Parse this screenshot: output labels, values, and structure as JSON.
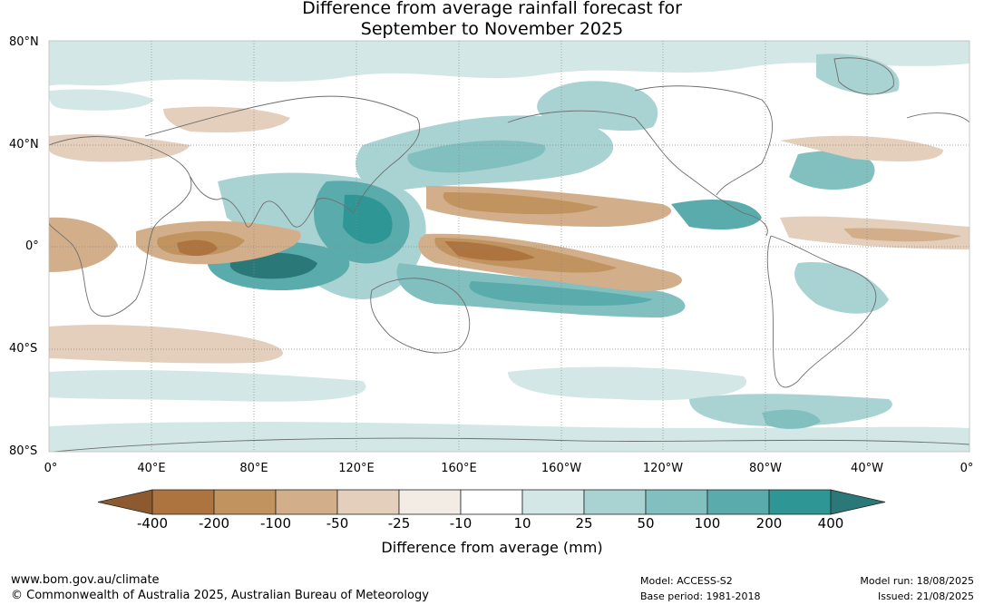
{
  "title": {
    "line1": "Difference from average rainfall forecast for",
    "line2": "September to November 2025"
  },
  "map": {
    "lat_labels": [
      "80°N",
      "40°N",
      "0°",
      "40°S",
      "80°S"
    ],
    "lon_labels": [
      "0°",
      "40°E",
      "80°E",
      "120°E",
      "160°E",
      "160°W",
      "120°W",
      "80°W",
      "40°W",
      "0°"
    ]
  },
  "colorbar": {
    "title": "Difference from average (mm)",
    "ticks": [
      "-400",
      "-200",
      "-100",
      "-50",
      "-25",
      "-10",
      "10",
      "25",
      "50",
      "100",
      "200",
      "400"
    ],
    "colors": [
      "#8c5a2e",
      "#ae7440",
      "#c0935f",
      "#d2ae8a",
      "#e3cfbc",
      "#f2ece4",
      "#ffffff",
      "#d3e8e6",
      "#a9d3d2",
      "#82c0c0",
      "#5aabab",
      "#2f9696",
      "#2a7878"
    ]
  },
  "footer": {
    "url": "www.bom.gov.au/climate",
    "copyright": "© Commonwealth of Australia 2025, Australian Bureau of Meteorology",
    "model": "Model: ACCESS-S2",
    "base_period": "Base period: 1981-2018",
    "model_run": "Model run: 18/08/2025",
    "issued": "Issued: 21/08/2025"
  }
}
